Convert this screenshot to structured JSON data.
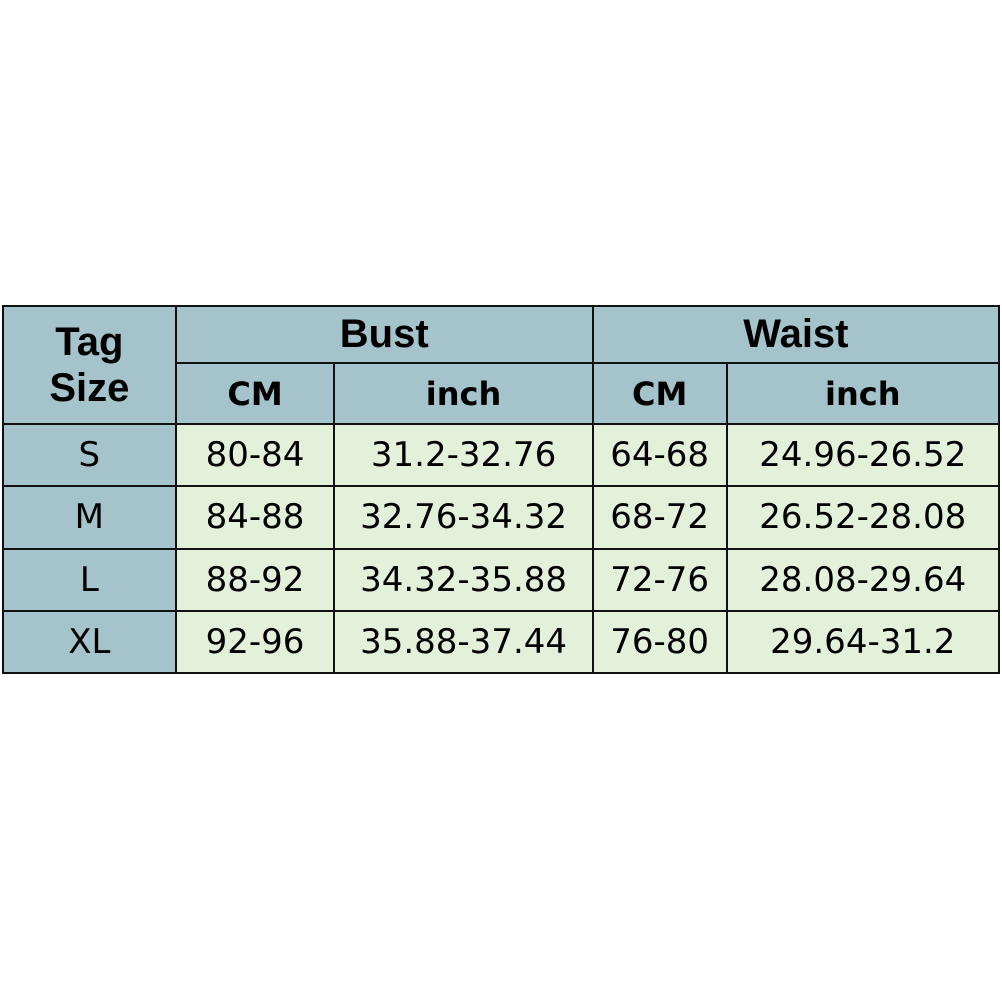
{
  "header": {
    "tag_size": [
      "Tag",
      "Size"
    ],
    "groups": [
      "Bust",
      "Waist"
    ],
    "subheaders": [
      "CM",
      "inch",
      "CM",
      "inch"
    ]
  },
  "colors": {
    "header_bg": "#a5c3cb",
    "cell_bg": "#e3f0da",
    "border": "#111111"
  },
  "rows": [
    {
      "size": "S",
      "values": [
        "80-84",
        "31.2-32.76",
        "64-68",
        "24.96-26.52"
      ]
    },
    {
      "size": "M",
      "values": [
        "84-88",
        "32.76-34.32",
        "68-72",
        "26.52-28.08"
      ]
    },
    {
      "size": "L",
      "values": [
        "88-92",
        "34.32-35.88",
        "72-76",
        "28.08-29.64"
      ]
    },
    {
      "size": "XL",
      "values": [
        "92-96",
        "35.88-37.44",
        "76-80",
        "29.64-31.2"
      ]
    }
  ]
}
